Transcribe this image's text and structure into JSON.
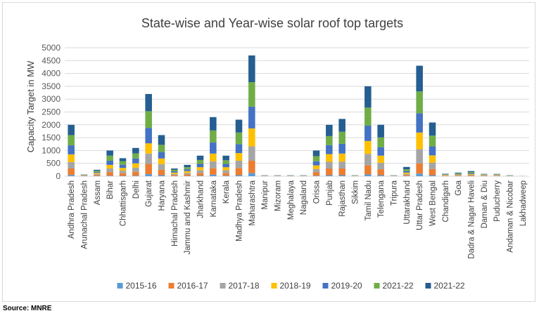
{
  "source": "Source: MNRE",
  "colors": {
    "2015-16": "#5b9bd5",
    "2016-17": "#ed7d31",
    "2017-18": "#a5a5a5",
    "2018-19": "#ffc000",
    "2019-20": "#4472c4",
    "2021-22a": "#70ad47",
    "2021-22b": "#255e91"
  },
  "chart_data": {
    "type": "bar",
    "stacked": true,
    "title": "State-wise and Year-wise solar roof top targets",
    "xlabel": "",
    "ylabel": "Capacity Target in MW",
    "ylim": [
      0,
      5000
    ],
    "yticks": [
      0,
      500,
      1000,
      1500,
      2000,
      2500,
      3000,
      3500,
      4000,
      4500,
      5000
    ],
    "grid": true,
    "legend_position": "bottom",
    "categories": [
      "Andhra Pradesh",
      "Arunachal Pradesh",
      "Assam",
      "Bihar",
      "Chhattisgarh",
      "Delhi",
      "Gujarat",
      "Haryana",
      "Himachal Pradesh",
      "Jammu and Kashmir",
      "Jharkhand",
      "Karnataka",
      "Kerala",
      "Madhya Pradesh",
      "Maharashtra",
      "Manipur",
      "Mizoram",
      "Meghalaya",
      "Nagaland",
      "Orissa",
      "Punjab",
      "Rajasthan",
      "Sikkim",
      "Tamil Nadu",
      "Telengana",
      "Tripura",
      "Uttarakhand",
      "Uttar Pradesh",
      "West Bengal",
      "Chandigarh",
      "Goa",
      "Dadra & Nagar Haveli",
      "Daman & Diu",
      "Puducherry",
      "Andaman & Nicobar",
      "Lakhadweep"
    ],
    "series": [
      {
        "name": "2015-16",
        "values": [
          50,
          5,
          10,
          20,
          15,
          20,
          80,
          40,
          10,
          10,
          20,
          60,
          20,
          40,
          120,
          2,
          2,
          2,
          2,
          20,
          40,
          40,
          2,
          70,
          40,
          2,
          10,
          100,
          40,
          5,
          5,
          5,
          2,
          2,
          2,
          1
        ]
      },
      {
        "name": "2016-17",
        "values": [
          250,
          10,
          40,
          140,
          100,
          150,
          400,
          210,
          40,
          60,
          100,
          250,
          100,
          280,
          480,
          5,
          5,
          5,
          5,
          130,
          260,
          260,
          5,
          350,
          230,
          5,
          40,
          400,
          240,
          15,
          20,
          25,
          15,
          15,
          5,
          2
        ]
      },
      {
        "name": "2017-18",
        "values": [
          250,
          10,
          40,
          140,
          100,
          160,
          400,
          220,
          40,
          60,
          110,
          270,
          110,
          280,
          560,
          5,
          5,
          5,
          5,
          130,
          260,
          270,
          5,
          450,
          250,
          5,
          40,
          550,
          250,
          15,
          20,
          25,
          15,
          15,
          5,
          2
        ]
      },
      {
        "name": "2018-19",
        "values": [
          300,
          10,
          40,
          140,
          110,
          170,
          400,
          220,
          50,
          70,
          120,
          300,
          120,
          300,
          700,
          5,
          5,
          5,
          5,
          140,
          300,
          310,
          5,
          500,
          280,
          5,
          50,
          650,
          280,
          15,
          20,
          30,
          15,
          15,
          5,
          2
        ]
      },
      {
        "name": "2019-20",
        "values": [
          350,
          10,
          40,
          160,
          120,
          190,
          600,
          250,
          50,
          70,
          130,
          430,
          130,
          350,
          850,
          5,
          5,
          5,
          5,
          160,
          350,
          380,
          5,
          600,
          330,
          5,
          60,
          750,
          350,
          15,
          25,
          35,
          15,
          15,
          5,
          2
        ]
      },
      {
        "name": "2021-22",
        "values": [
          400,
          10,
          40,
          200,
          140,
          200,
          650,
          280,
          60,
          80,
          150,
          470,
          140,
          450,
          950,
          5,
          5,
          5,
          5,
          200,
          350,
          470,
          5,
          700,
          380,
          5,
          70,
          850,
          420,
          15,
          25,
          40,
          15,
          15,
          5,
          1
        ]
      },
      {
        "name": "2021-22",
        "values": [
          400,
          10,
          40,
          200,
          115,
          210,
          670,
          380,
          50,
          90,
          170,
          520,
          180,
          500,
          1040,
          8,
          8,
          8,
          8,
          220,
          440,
          500,
          8,
          830,
          490,
          8,
          90,
          1000,
          510,
          15,
          25,
          40,
          13,
          13,
          8,
          0
        ]
      }
    ]
  }
}
